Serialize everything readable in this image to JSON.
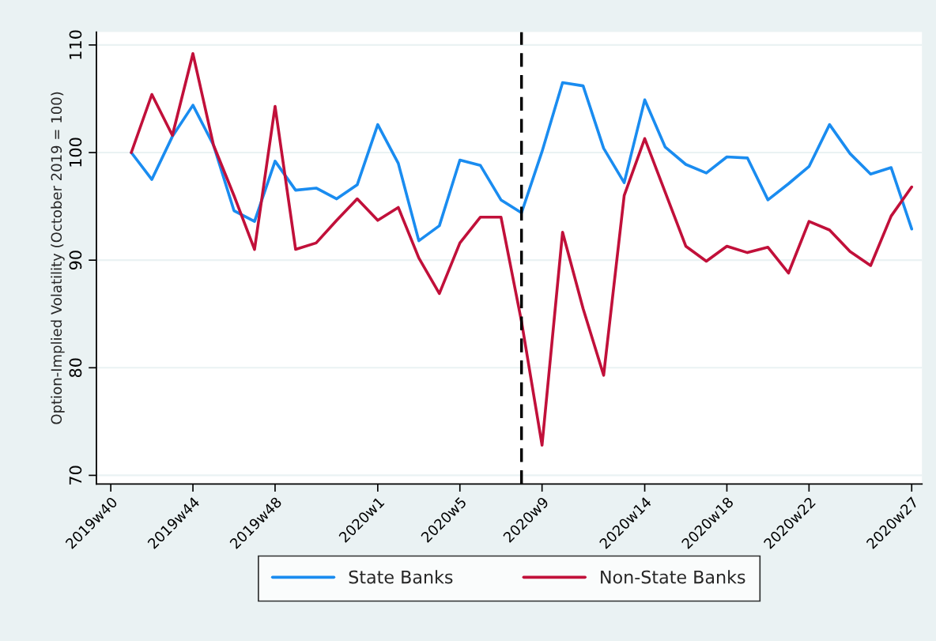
{
  "chart_data": {
    "type": "line",
    "ylabel": "Option-Implied Volatility (October 2019 = 100)",
    "categories": [
      "2019w40",
      null,
      null,
      null,
      "2019w44",
      null,
      null,
      null,
      "2019w48",
      null,
      null,
      null,
      null,
      "2020w1",
      null,
      null,
      null,
      "2020w5",
      null,
      null,
      null,
      "2020w9",
      null,
      null,
      null,
      null,
      "2020w14",
      null,
      null,
      null,
      "2020w18",
      null,
      null,
      null,
      "2020w22",
      null,
      null,
      null,
      null,
      "2020w27"
    ],
    "series": [
      {
        "name": "State Banks",
        "color": "#1a8cf0",
        "values": [
          null,
          100,
          97.5,
          101.5,
          104.4,
          100.7,
          94.6,
          93.6,
          99.2,
          96.5,
          96.7,
          95.7,
          97.0,
          102.6,
          99.0,
          91.8,
          93.2,
          99.3,
          98.8,
          95.6,
          94.4,
          100.1,
          106.5,
          106.2,
          100.4,
          97.2,
          104.9,
          100.5,
          98.9,
          98.1,
          99.6,
          99.5,
          95.6,
          97.1,
          98.7,
          102.6,
          99.9,
          98.0,
          98.6,
          92.9
        ]
      },
      {
        "name": "Non-State Banks",
        "color": "#c1103a",
        "values": [
          null,
          100,
          105.4,
          101.6,
          109.2,
          100.7,
          96.0,
          91.0,
          104.3,
          91.0,
          91.6,
          93.7,
          95.7,
          93.7,
          94.9,
          90.2,
          86.9,
          91.6,
          94.0,
          94.0,
          84.3,
          72.8,
          92.6,
          85.5,
          79.3,
          96.0,
          101.3,
          96.3,
          91.3,
          89.9,
          91.3,
          90.7,
          91.2,
          88.8,
          93.6,
          92.8,
          90.8,
          89.5,
          94.1,
          96.8
        ]
      }
    ],
    "ylim": [
      69.2,
      111.2
    ],
    "yticks": [
      70,
      80,
      90,
      100,
      110
    ],
    "grid": "y",
    "legend": "bottom",
    "line_style": "solid"
  }
}
